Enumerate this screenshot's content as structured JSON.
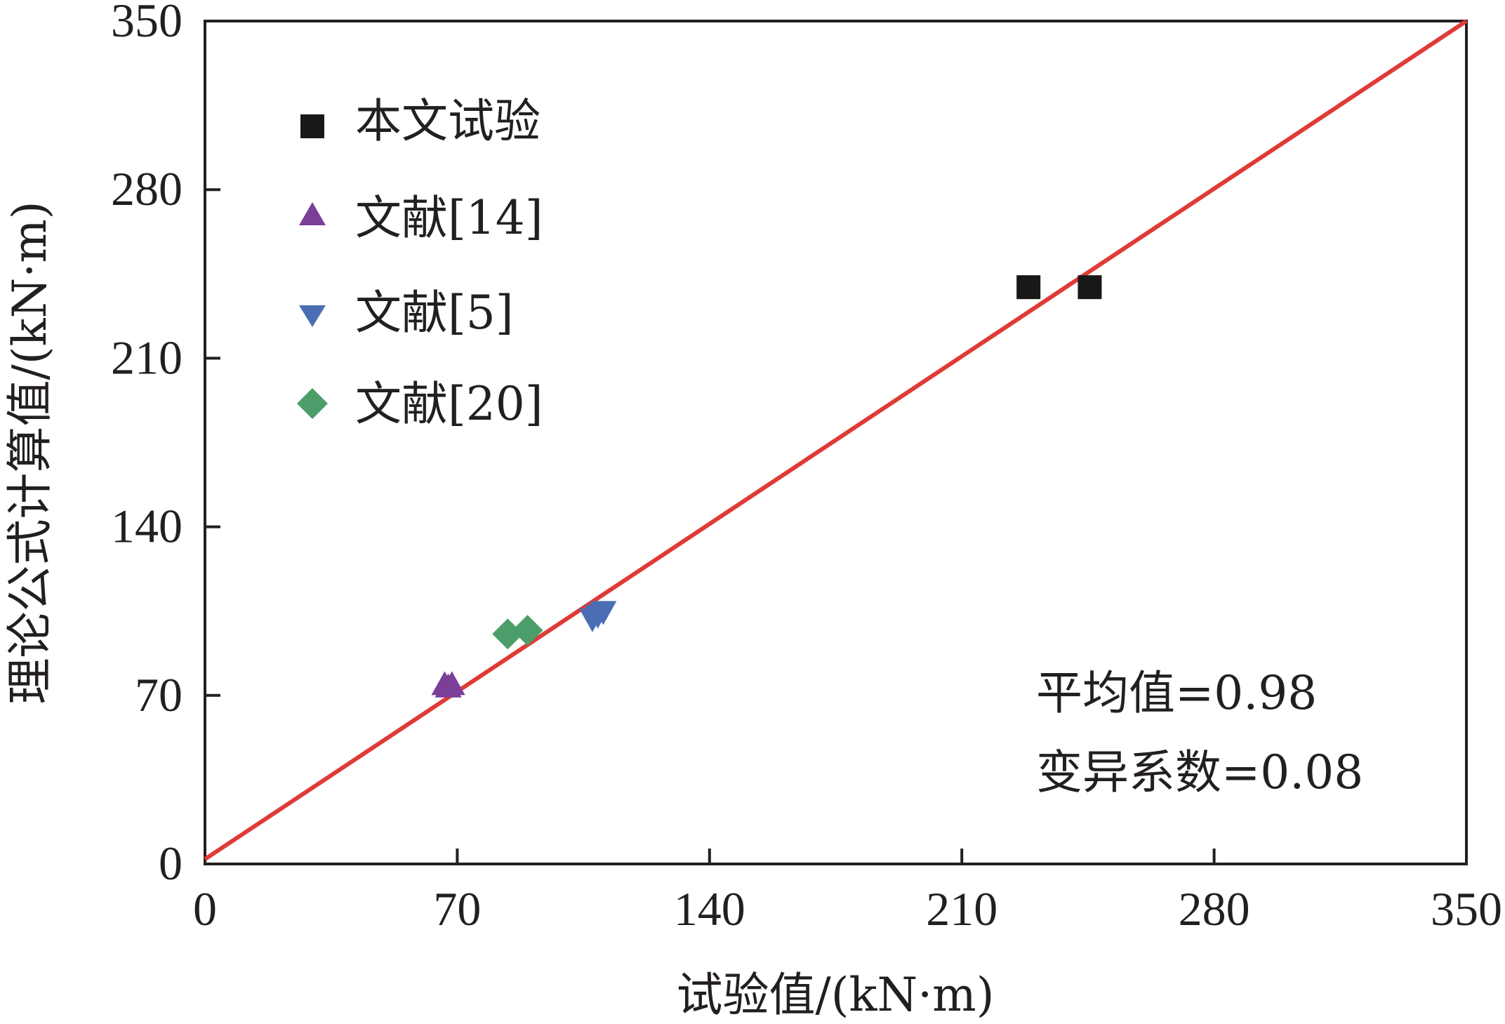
{
  "chart_data": {
    "type": "scatter",
    "xlabel": "试验值/(kN·m)",
    "ylabel": "理论公式计算值/(kN·m)",
    "xlim": [
      0,
      350
    ],
    "ylim": [
      0,
      350
    ],
    "xticks": [
      "0",
      "70",
      "140",
      "210",
      "280",
      "350"
    ],
    "yticks": [
      "0",
      "70",
      "140",
      "210",
      "280",
      "350"
    ],
    "grid": false,
    "legend_position": "top-left",
    "series": [
      {
        "name": "本文试验",
        "marker": "square",
        "color": "#1a1717",
        "points": [
          [
            228.5,
            239.5
          ],
          [
            245.5,
            239.5
          ]
        ]
      },
      {
        "name": "文献[14]",
        "marker": "triangle-up",
        "color": "#7b3f98",
        "points": [
          [
            66.5,
            74.5
          ],
          [
            67.5,
            73.5
          ],
          [
            68.5,
            74.5
          ]
        ]
      },
      {
        "name": "文献[5]",
        "marker": "triangle-down",
        "color": "#4a6db4",
        "points": [
          [
            107.5,
            101.5
          ],
          [
            109.0,
            103.0
          ],
          [
            110.5,
            104.5
          ]
        ]
      },
      {
        "name": "文献[20]",
        "marker": "diamond",
        "color": "#4b9e6a",
        "points": [
          [
            84.0,
            95.5
          ],
          [
            89.5,
            97.0
          ]
        ]
      }
    ],
    "reference_line": {
      "color": "#e03a35",
      "from": [
        0,
        2
      ],
      "to": [
        350,
        350
      ]
    },
    "annotations": {
      "mean": "平均值=0.98",
      "cov": "变异系数=0.08"
    }
  }
}
